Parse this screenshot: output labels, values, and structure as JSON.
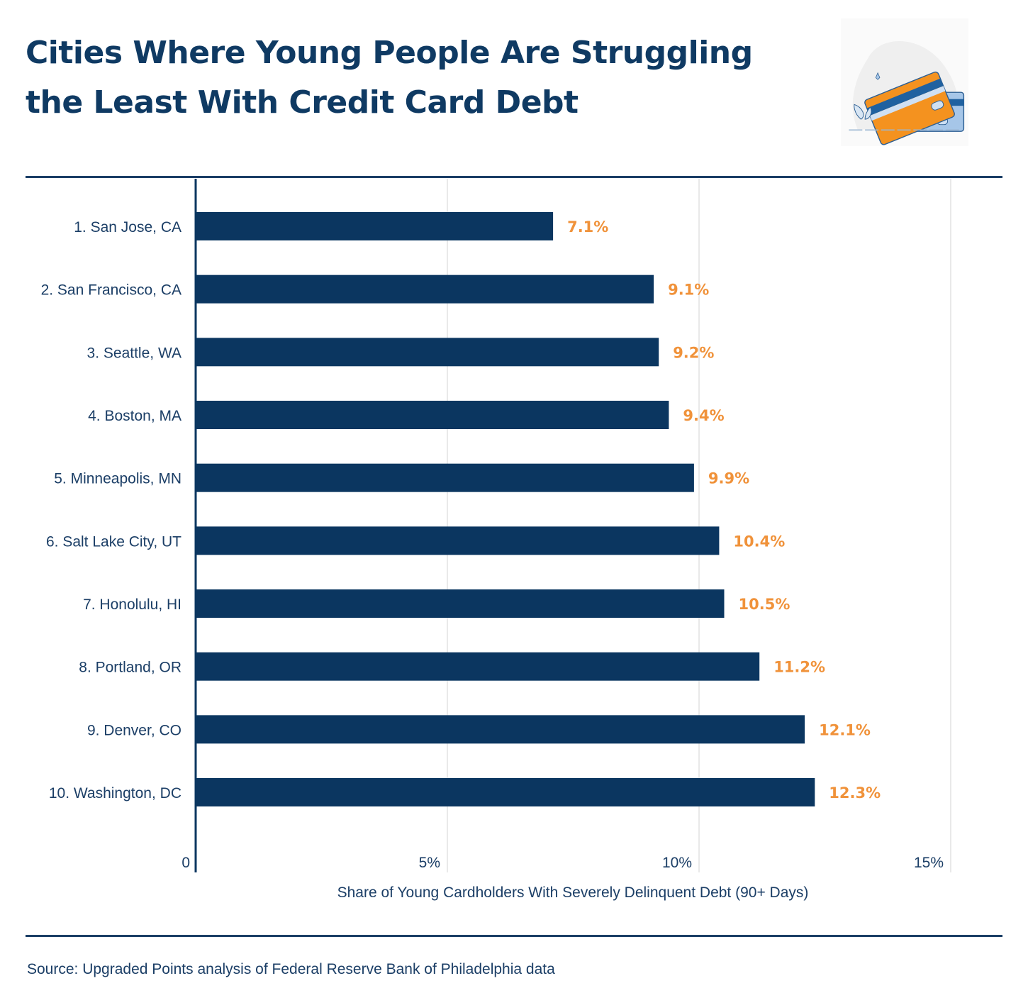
{
  "title": "Cities Where Young People Are Struggling the Least With Credit Card Debt",
  "source": "Source: Upgraded Points analysis of Federal Reserve Bank of Philadelphia data",
  "illustration_icon": "credit-cards-icon",
  "colors": {
    "bar": "#0b3660",
    "label": "#f0923a",
    "text": "#1b3e66",
    "grid": "#e2e2e2"
  },
  "chart_data": {
    "type": "bar",
    "orientation": "horizontal",
    "categories": [
      "1. San Jose, CA",
      "2. San Francisco, CA",
      "3. Seattle, WA",
      "4. Boston, MA",
      "5. Minneapolis, MN",
      "6. Salt Lake City, UT",
      "7. Honolulu, HI",
      "8. Portland, OR",
      "9. Denver, CO",
      "10. Washington, DC"
    ],
    "values": [
      7.1,
      9.1,
      9.2,
      9.4,
      9.9,
      10.4,
      10.5,
      11.2,
      12.1,
      12.3
    ],
    "data_labels": [
      "7.1%",
      "9.1%",
      "9.2%",
      "9.4%",
      "9.9%",
      "10.4%",
      "10.5%",
      "11.2%",
      "12.1%",
      "12.3%"
    ],
    "xlabel": "Share of Young Cardholders With Severely Delinquent Debt (90+ Days)",
    "ylabel": "",
    "xlim": [
      0,
      15
    ],
    "xticks": [
      0,
      5,
      10,
      15
    ],
    "xtick_labels": [
      "0",
      "5%",
      "10%",
      "15%"
    ],
    "grid": true
  }
}
